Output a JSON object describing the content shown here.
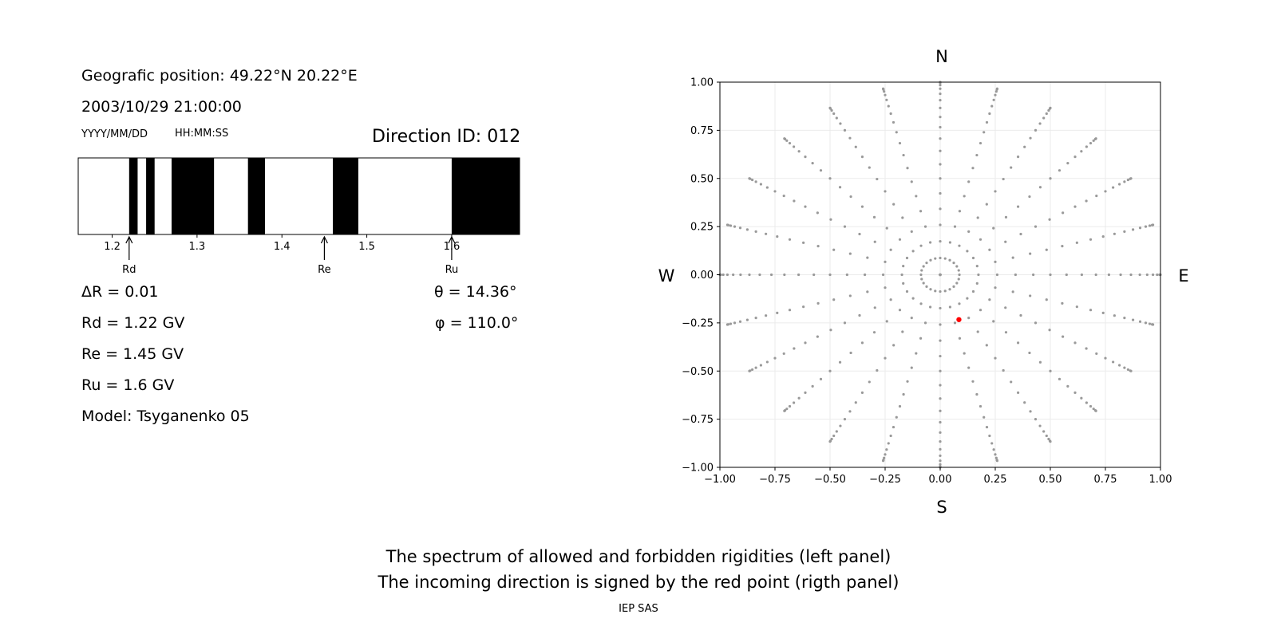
{
  "left_panel": {
    "geo_position": "Geografic position: 49.22°N 20.22°E",
    "datetime": "2003/10/29 21:00:00",
    "date_format": "YYYY/MM/DD",
    "time_format": "HH:MM:SS",
    "direction_id": "Direction ID: 012",
    "delta_r": "ΔR = 0.01",
    "rd": "Rd = 1.22 GV",
    "re": "Re = 1.45 GV",
    "ru": "Ru = 1.6 GV",
    "model": "Model: Tsyganenko 05",
    "theta": "θ = 14.36°",
    "phi": "φ = 110.0°"
  },
  "caption": {
    "line1": "The spectrum of allowed and forbidden rigidities (left panel)",
    "line2": "The incoming direction is signed by the red point (rigth panel)"
  },
  "credit": "IEP SAS",
  "chart_data": [
    {
      "type": "bar",
      "description_kind": "rigidity-spectrum",
      "x_range": [
        1.16,
        1.68
      ],
      "x_ticks": [
        1.2,
        1.3,
        1.4,
        1.5,
        1.6
      ],
      "forbidden_bands": [
        [
          1.22,
          1.23
        ],
        [
          1.24,
          1.25
        ],
        [
          1.27,
          1.32
        ],
        [
          1.36,
          1.38
        ],
        [
          1.46,
          1.49
        ],
        [
          1.6,
          1.68
        ]
      ],
      "markers": [
        {
          "label": "Rd",
          "value": 1.22
        },
        {
          "label": "Re",
          "value": 1.45
        },
        {
          "label": "Ru",
          "value": 1.6
        }
      ],
      "colors": {
        "forbidden": "#000000",
        "allowed": "#ffffff"
      }
    },
    {
      "type": "scatter",
      "xlim": [
        -1.0,
        1.0
      ],
      "ylim": [
        -1.0,
        1.0
      ],
      "x_ticks": [
        -1.0,
        -0.75,
        -0.5,
        -0.25,
        0.0,
        0.25,
        0.5,
        0.75,
        1.0
      ],
      "y_ticks": [
        -1.0,
        -0.75,
        -0.5,
        -0.25,
        0.0,
        0.25,
        0.5,
        0.75,
        1.0
      ],
      "x_tick_labels": [
        "−1.00",
        "−0.75",
        "−0.50",
        "−0.25",
        "0.00",
        "0.25",
        "0.50",
        "0.75",
        "1.00"
      ],
      "y_tick_labels": [
        "−1.00",
        "−0.75",
        "−0.50",
        "−0.25",
        "0.00",
        "0.25",
        "0.50",
        "0.75",
        "1.00"
      ],
      "grid": true,
      "compass": {
        "n": "N",
        "s": "S",
        "e": "E",
        "w": "W"
      },
      "grid_points": {
        "description": "zenith angles 0–90° step 5° along azimuths 0–345° step 15°, projected as sin(zenith)",
        "zenith_step_deg": 5,
        "zenith_max_deg": 90,
        "azimuth_step_deg": 15,
        "color": "#999999"
      },
      "highlight": {
        "theta_deg": 14.36,
        "phi_deg": 110.0,
        "x": 0.085,
        "y": -0.233,
        "color": "#ff0000"
      }
    }
  ]
}
